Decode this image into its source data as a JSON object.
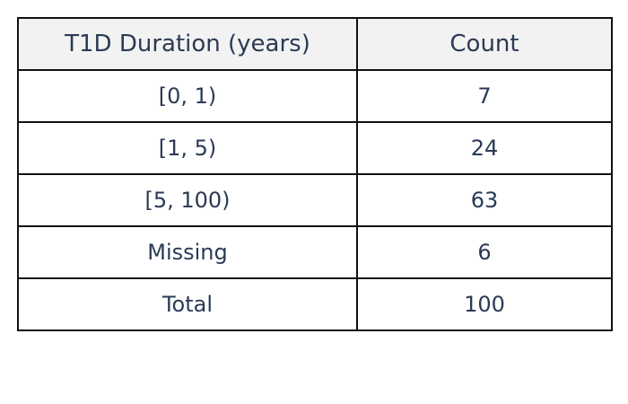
{
  "chart_data": {
    "type": "table",
    "columns": [
      "T1D Duration (years)",
      "Count"
    ],
    "rows": [
      [
        "[0, 1)",
        "7"
      ],
      [
        "[1, 5)",
        "24"
      ],
      [
        "[5, 100)",
        "63"
      ],
      [
        "Missing",
        "6"
      ],
      [
        "Total",
        "100"
      ]
    ]
  },
  "colors": {
    "text": "#2b3a55",
    "header_bg": "#f2f2f2",
    "border": "#111111"
  }
}
